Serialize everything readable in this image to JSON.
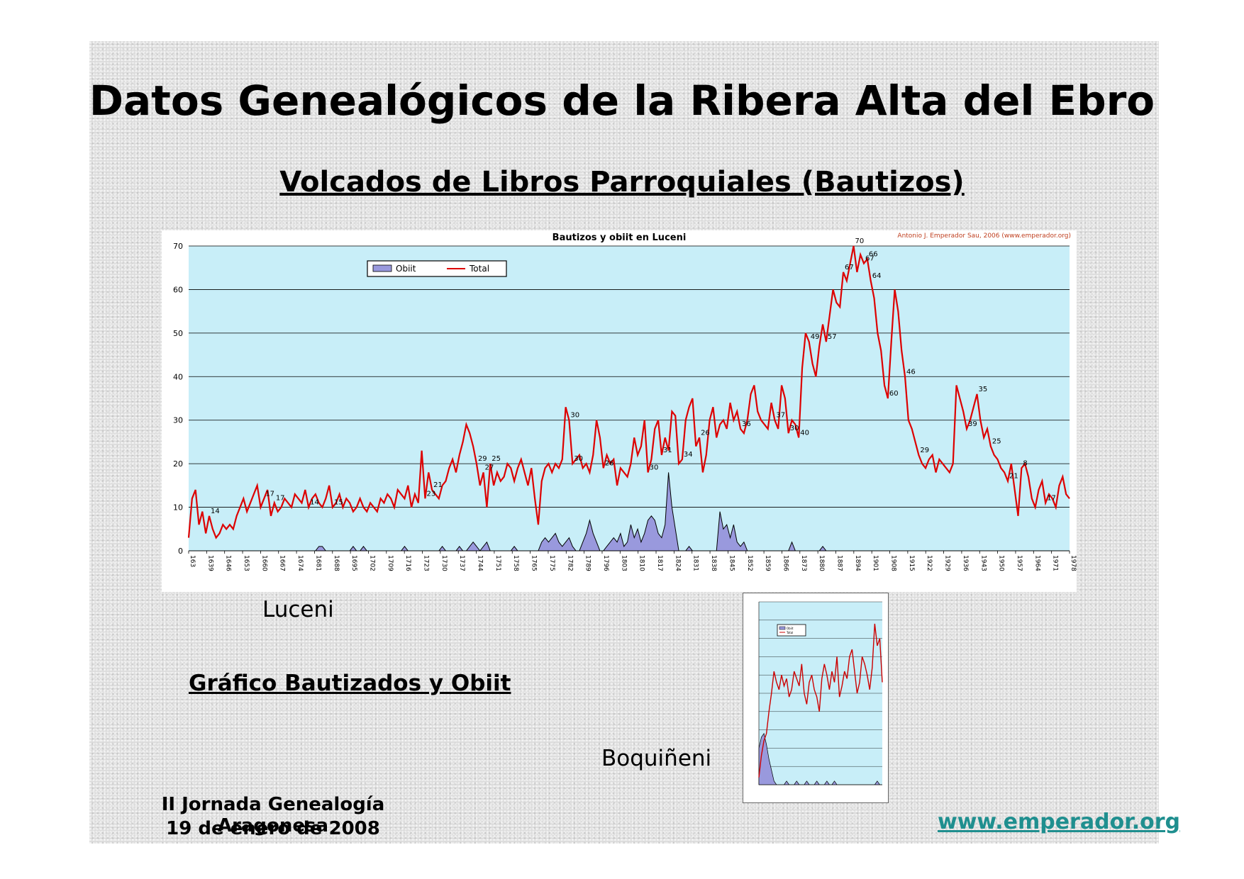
{
  "slide": {
    "title": "Datos Genealógicos de la Ribera Alta del Ebro",
    "subtitle": "Volcados de Libros Parroquiales (Bautizos)",
    "luceni_label": "Luceni",
    "grafico_label": "Gráfico Bautizados y Obiit",
    "boquineni_label": "Boquiñeni",
    "footer_line1": "II Jornada Genealogía Aragonesa",
    "footer_line2": "19 de enero de 2008",
    "website": "www.emperador.org",
    "website_color": "#1f8f8f"
  },
  "chart_data": [
    {
      "type": "line",
      "title": "Bautizos y obiit en Luceni",
      "subtitle": "Antonio J. Emperador Sau, 2006 (www.emperador.org)",
      "ylim": [
        0,
        70
      ],
      "yticks": [
        0,
        10,
        20,
        30,
        40,
        50,
        60,
        70
      ],
      "grid": true,
      "legend_position": "top-left",
      "colors": {
        "total": "#dd0000",
        "obiit": "#9999dd",
        "plot_bg": "#c8eef8"
      },
      "x_tick_labels": [
        "163",
        "1639",
        "1646",
        "1653",
        "1660",
        "1667",
        "1674",
        "1681",
        "1688",
        "1695",
        "1702",
        "1709",
        "1716",
        "1723",
        "1730",
        "1737",
        "1744",
        "1751",
        "1758",
        "1765",
        "1775",
        "1782",
        "1789",
        "1796",
        "1803",
        "1810",
        "1817",
        "1824",
        "1831",
        "1838",
        "1845",
        "1852",
        "1859",
        "1866",
        "1873",
        "1880",
        "1887",
        "1894",
        "1901",
        "1908",
        "1915",
        "1922",
        "1929",
        "1936",
        "1943",
        "1950",
        "1957",
        "1964",
        "1971",
        "1978"
      ],
      "series": [
        {
          "name": "Total",
          "kind": "line",
          "values": [
            3,
            12,
            14,
            6,
            9,
            4,
            8,
            5,
            3,
            4,
            6,
            5,
            6,
            5,
            8,
            10,
            12,
            9,
            11,
            13,
            15,
            10,
            12,
            14,
            8,
            11,
            9,
            10,
            12,
            11,
            10,
            13,
            12,
            11,
            14,
            10,
            12,
            13,
            11,
            10,
            12,
            15,
            10,
            11,
            13,
            10,
            12,
            11,
            9,
            10,
            12,
            10,
            9,
            11,
            10,
            9,
            12,
            11,
            13,
            12,
            10,
            14,
            13,
            12,
            15,
            10,
            13,
            11,
            23,
            12,
            18,
            14,
            13,
            12,
            15,
            16,
            19,
            21,
            18,
            22,
            25,
            29,
            27,
            24,
            20,
            15,
            18,
            10,
            20,
            15,
            18,
            16,
            17,
            20,
            19,
            16,
            19,
            21,
            18,
            15,
            19,
            12,
            6,
            16,
            19,
            20,
            18,
            20,
            19,
            21,
            33,
            30,
            20,
            21,
            22,
            19,
            20,
            18,
            22,
            30,
            26,
            19,
            22,
            20,
            21,
            15,
            19,
            18,
            17,
            20,
            26,
            22,
            24,
            30,
            18,
            21,
            28,
            30,
            22,
            26,
            23,
            32,
            31,
            20,
            21,
            30,
            33,
            35,
            24,
            26,
            18,
            22,
            30,
            33,
            26,
            29,
            30,
            28,
            34,
            30,
            32,
            28,
            27,
            30,
            36,
            38,
            32,
            30,
            29,
            28,
            34,
            30,
            28,
            38,
            35,
            27,
            30,
            29,
            26,
            42,
            50,
            48,
            43,
            40,
            47,
            52,
            48,
            54,
            60,
            57,
            56,
            64,
            62,
            66,
            70,
            64,
            68,
            66,
            67,
            62,
            58,
            50,
            46,
            38,
            35,
            48,
            60,
            55,
            46,
            40,
            30,
            28,
            25,
            22,
            20,
            19,
            21,
            22,
            18,
            21,
            20,
            19,
            18,
            20,
            38,
            35,
            32,
            28,
            30,
            33,
            36,
            30,
            26,
            28,
            24,
            22,
            21,
            19,
            18,
            16,
            20,
            14,
            8,
            19,
            20,
            17,
            12,
            10,
            14,
            16,
            11,
            13,
            12,
            10,
            15,
            17,
            13,
            12
          ]
        },
        {
          "name": "Obiit",
          "kind": "area",
          "values": [
            0,
            0,
            0,
            0,
            0,
            0,
            0,
            0,
            0,
            0,
            0,
            0,
            0,
            0,
            0,
            0,
            0,
            0,
            0,
            0,
            0,
            0,
            0,
            0,
            0,
            0,
            0,
            0,
            0,
            0,
            0,
            0,
            0,
            0,
            0,
            0,
            0,
            0,
            1,
            1,
            0,
            0,
            0,
            0,
            0,
            0,
            0,
            0,
            1,
            0,
            0,
            1,
            0,
            0,
            0,
            0,
            0,
            0,
            0,
            0,
            0,
            0,
            0,
            1,
            0,
            0,
            0,
            0,
            0,
            0,
            0,
            0,
            0,
            0,
            1,
            0,
            0,
            0,
            0,
            1,
            0,
            0,
            1,
            2,
            1,
            0,
            1,
            2,
            0,
            0,
            0,
            0,
            0,
            0,
            0,
            1,
            0,
            0,
            0,
            0,
            0,
            0,
            0,
            2,
            3,
            2,
            3,
            4,
            2,
            1,
            2,
            3,
            1,
            0,
            0,
            2,
            4,
            7,
            4,
            2,
            0,
            0,
            1,
            2,
            3,
            2,
            4,
            1,
            2,
            6,
            3,
            5,
            2,
            4,
            7,
            8,
            7,
            4,
            3,
            6,
            18,
            10,
            5,
            0,
            0,
            0,
            1,
            0,
            0,
            0,
            0,
            0,
            0,
            0,
            0,
            9,
            5,
            6,
            3,
            6,
            2,
            1,
            2,
            0,
            0,
            0,
            0,
            0,
            0,
            0,
            0,
            0,
            0,
            0,
            0,
            0,
            2,
            0,
            0,
            0,
            0,
            0,
            0,
            0,
            0,
            1,
            0,
            0,
            0,
            0,
            0,
            0,
            0,
            0,
            0,
            0,
            0,
            0,
            0,
            0,
            0,
            0,
            0,
            0,
            0,
            0,
            0,
            0,
            0,
            0,
            0,
            0,
            0,
            0,
            0,
            0,
            0,
            0,
            0,
            0,
            0,
            0,
            0,
            0,
            0,
            0,
            0,
            0,
            0,
            0,
            0,
            0,
            0,
            0,
            0,
            0,
            0,
            0,
            0,
            0,
            0,
            0,
            0,
            0,
            0,
            0,
            0,
            0
          ]
        }
      ],
      "data_labels": [
        {
          "i": 6,
          "text": "14"
        },
        {
          "i": 22,
          "text": "17"
        },
        {
          "i": 25,
          "text": "17"
        },
        {
          "i": 35,
          "text": "14"
        },
        {
          "i": 42,
          "text": "15"
        },
        {
          "i": 69,
          "text": "23"
        },
        {
          "i": 71,
          "text": "21"
        },
        {
          "i": 84,
          "text": "29"
        },
        {
          "i": 86,
          "text": "27"
        },
        {
          "i": 88,
          "text": "25"
        },
        {
          "i": 111,
          "text": "30"
        },
        {
          "i": 112,
          "text": "30"
        },
        {
          "i": 121,
          "text": "26"
        },
        {
          "i": 134,
          "text": "30"
        },
        {
          "i": 138,
          "text": "31"
        },
        {
          "i": 144,
          "text": "34"
        },
        {
          "i": 149,
          "text": "26"
        },
        {
          "i": 161,
          "text": "36"
        },
        {
          "i": 171,
          "text": "37"
        },
        {
          "i": 175,
          "text": "30"
        },
        {
          "i": 178,
          "text": "40"
        },
        {
          "i": 181,
          "text": "49"
        },
        {
          "i": 186,
          "text": "57"
        },
        {
          "i": 191,
          "text": "67"
        },
        {
          "i": 194,
          "text": "70"
        },
        {
          "i": 197,
          "text": "67"
        },
        {
          "i": 198,
          "text": "66"
        },
        {
          "i": 199,
          "text": "64"
        },
        {
          "i": 204,
          "text": "60"
        },
        {
          "i": 209,
          "text": "46"
        },
        {
          "i": 213,
          "text": "29"
        },
        {
          "i": 227,
          "text": "39"
        },
        {
          "i": 230,
          "text": "35"
        },
        {
          "i": 234,
          "text": "25"
        },
        {
          "i": 239,
          "text": "21"
        },
        {
          "i": 243,
          "text": "8"
        },
        {
          "i": 250,
          "text": "17"
        }
      ]
    },
    {
      "type": "line",
      "title": "",
      "ylim": [
        0,
        50
      ],
      "yticks": [
        0,
        5,
        10,
        15,
        20,
        25,
        30,
        35,
        40,
        45,
        50
      ],
      "grid": true,
      "legend_position": "top-left",
      "colors": {
        "total": "#cc0000",
        "obiit": "#9999dd",
        "plot_bg": "#c8eef8"
      },
      "series": [
        {
          "name": "Total",
          "kind": "line",
          "values": [
            2,
            8,
            12,
            14,
            20,
            25,
            31,
            28,
            26,
            30,
            27,
            29,
            24,
            26,
            31,
            29,
            27,
            33,
            25,
            22,
            28,
            30,
            26,
            24,
            20,
            29,
            33,
            30,
            26,
            31,
            28,
            35,
            24,
            27,
            31,
            29,
            35,
            37,
            31,
            25,
            28,
            35,
            33,
            30,
            26,
            32,
            44,
            38,
            40,
            28
          ]
        },
        {
          "name": "Obiit",
          "kind": "area",
          "values": [
            10,
            13,
            14,
            11,
            7,
            4,
            1,
            0,
            0,
            0,
            0,
            1,
            0,
            0,
            0,
            1,
            0,
            0,
            0,
            1,
            0,
            0,
            0,
            1,
            0,
            0,
            0,
            1,
            0,
            0,
            1,
            0,
            0,
            0,
            0,
            0,
            0,
            0,
            0,
            0,
            0,
            0,
            0,
            0,
            0,
            0,
            0,
            1,
            0,
            0
          ]
        }
      ]
    }
  ]
}
